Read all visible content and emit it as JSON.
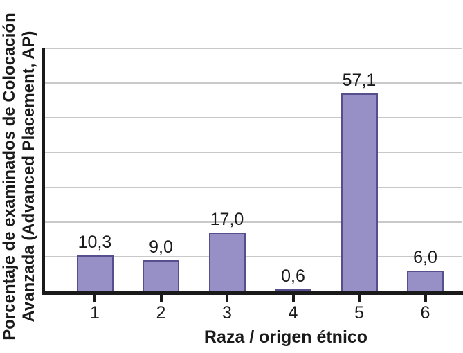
{
  "chart_data": {
    "type": "bar",
    "title": "",
    "categories": [
      "1",
      "2",
      "3",
      "4",
      "5",
      "6"
    ],
    "values": [
      10.3,
      9.0,
      17.0,
      0.6,
      57.1,
      6.0
    ],
    "value_labels": [
      "10,3",
      "9,0",
      "17,0",
      "0,6",
      "57,1",
      "6,0"
    ],
    "xlabel": "Raza / origen étnico",
    "ylabel_line1": "Porcentaje de examinados de Colocación",
    "ylabel_line2": "Avanzada (Advanced Placement, AP)",
    "ylim": [
      0,
      70
    ],
    "gridline_step": 10,
    "grid": "horizontal gridlines on, no y tick labels",
    "legend": "none",
    "colors": {
      "bar_fill": "#9790c7",
      "bar_border": "#564f8e",
      "gridline": "#c9c9c9",
      "axis": "#1a1a1a",
      "text": "#1a1a1a",
      "background": "#ffffff"
    }
  }
}
